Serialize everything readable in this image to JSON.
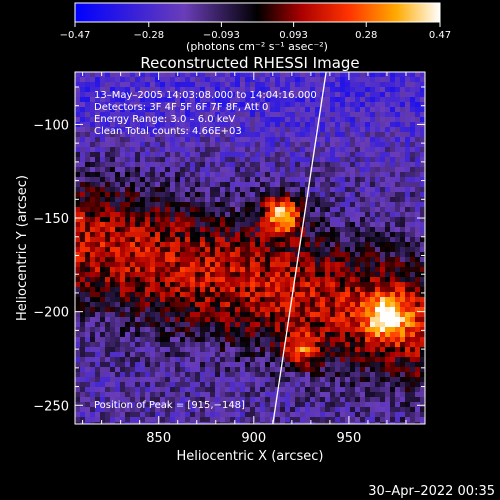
{
  "chart_data": {
    "type": "heatmap",
    "title": "Reconstructed RHESSI Image",
    "xlabel": "Heliocentric X (arcsec)",
    "ylabel": "Heliocentric Y (arcsec)",
    "xlim": [
      806,
      990
    ],
    "ylim": [
      -260,
      -72
    ],
    "x_ticks": [
      850,
      900,
      950
    ],
    "y_ticks": [
      -100,
      -150,
      -200,
      -250
    ],
    "colorbar": {
      "ticks": [
        -0.47,
        -0.28,
        -0.093,
        0.093,
        0.28,
        0.47
      ],
      "tick_labels": [
        "−0.47",
        "−0.28",
        "−0.093",
        "0.093",
        "0.28",
        "0.47"
      ],
      "unit_label": "(photons cm⁻² s⁻¹ asec⁻²)",
      "range": [
        -0.47,
        0.47
      ]
    },
    "annotations": [
      "13–May–2005 14:03:08.000 to 14:04:16.000",
      "Detectors: 3F 4F 5F 6F 7F 8F, Att 0",
      "Energy Range: 3.0 – 6.0 keV",
      "Clean     Total counts: 4.66E+03"
    ],
    "peak_label": "Position of Peak = [915,−148]",
    "peak": {
      "x": 915,
      "y": -148
    },
    "limb_line": [
      {
        "x": 938,
        "y": -72
      },
      {
        "x": 910,
        "y": -260
      }
    ],
    "hotspots": [
      {
        "x": 915,
        "y": -148,
        "sigma": 7,
        "amp": 0.55
      },
      {
        "x": 970,
        "y": -203,
        "sigma": 8,
        "amp": 0.42
      },
      {
        "x": 925,
        "y": -220,
        "sigma": 6,
        "amp": 0.3
      }
    ],
    "color_scale": [
      "#0000ff",
      "#5533bb",
      "#7a4ab0",
      "#000000",
      "#880000",
      "#ff2200",
      "#ff9900",
      "#ffff80",
      "#ffffff"
    ]
  },
  "footer": {
    "timestamp": "30–Apr–2022 00:35"
  }
}
